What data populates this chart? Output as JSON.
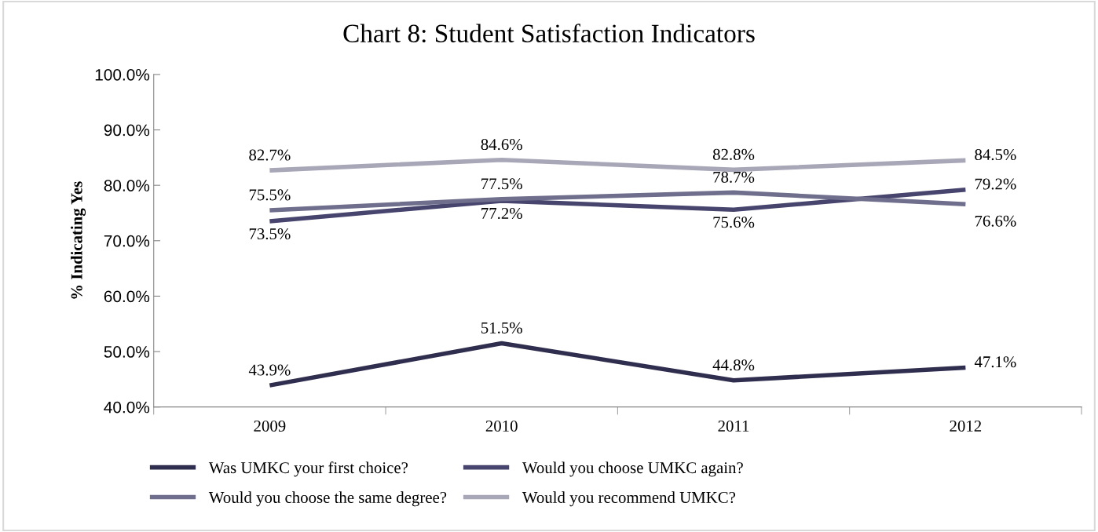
{
  "chart_data": {
    "type": "line",
    "title": "Chart 8: Student Satisfaction Indicators",
    "ylabel": "% Indicating Yes",
    "categories": [
      "2009",
      "2010",
      "2011",
      "2012"
    ],
    "series": [
      {
        "name": "Was UMKC your first choice?",
        "color": "#302e4f",
        "values": [
          43.9,
          51.5,
          44.8,
          47.1
        ],
        "value_labels": [
          "43.9%",
          "51.5%",
          "44.8%",
          "47.1%"
        ]
      },
      {
        "name": "Would you choose UMKC again?",
        "color": "#47456e",
        "values": [
          73.5,
          77.2,
          75.6,
          79.2
        ],
        "value_labels": [
          "73.5%",
          "77.2%",
          "75.6%",
          "79.2%"
        ]
      },
      {
        "name": "Would you choose the same degree?",
        "color": "#6f6e8c",
        "values": [
          75.5,
          77.5,
          78.7,
          76.6
        ],
        "value_labels": [
          "75.5%",
          "77.5%",
          "78.7%",
          "76.6%"
        ]
      },
      {
        "name": "Would you recommend UMKC?",
        "color": "#a8a7b8",
        "values": [
          82.7,
          84.6,
          82.8,
          84.5
        ],
        "value_labels": [
          "82.7%",
          "84.6%",
          "82.8%",
          "84.5%"
        ]
      }
    ],
    "ylim": [
      40,
      100
    ],
    "yticks": [
      {
        "value": 40,
        "label": "40.0%"
      },
      {
        "value": 50,
        "label": "50.0%"
      },
      {
        "value": 60,
        "label": "60.0%"
      },
      {
        "value": 70,
        "label": "70.0%"
      },
      {
        "value": 80,
        "label": "80.0%"
      },
      {
        "value": 90,
        "label": "90.0%"
      },
      {
        "value": 100,
        "label": "100.0%"
      }
    ],
    "legend": "bottom",
    "grid": false,
    "marker": "none",
    "line_style": "solid"
  }
}
